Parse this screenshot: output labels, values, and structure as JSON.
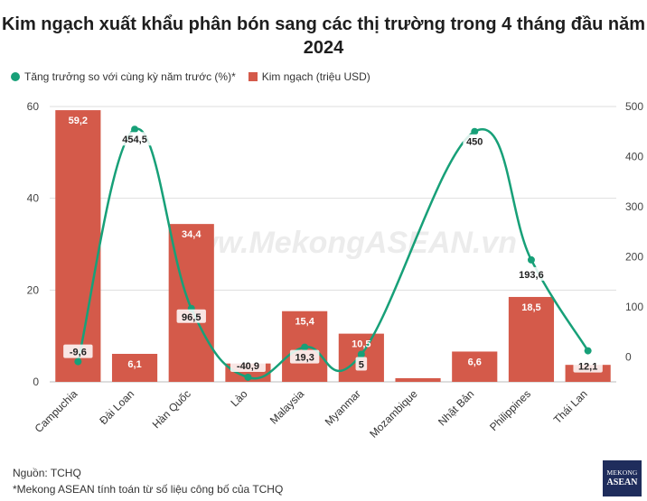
{
  "chart_data": {
    "type": "bar+line",
    "title": "Kim ngạch xuất khẩu phân bón sang các thị trường trong 4 tháng đầu năm 2024",
    "categories": [
      "Campuchia",
      "Đài Loan",
      "Hàn Quốc",
      "Lào",
      "Malaysia",
      "Myanmar",
      "Mozambique",
      "Nhật Bản",
      "Philippines",
      "Thái Lan"
    ],
    "series": [
      {
        "name": "Kim ngạch (triệu USD)",
        "type": "bar",
        "axis": "left",
        "color": "#d45a4a",
        "values": [
          59.2,
          6.1,
          34.4,
          4.0,
          15.4,
          10.5,
          0.8,
          6.6,
          18.5,
          3.7
        ],
        "labels": [
          "59,2",
          "6,1",
          "34,4",
          "",
          "15,4",
          "10,5",
          "",
          "6,6",
          "18,5",
          ""
        ]
      },
      {
        "name": "Tăng trưởng so với cùng kỳ năm trước (%)*",
        "type": "line",
        "axis": "right",
        "color": "#17a078",
        "values": [
          -9.6,
          454.5,
          96.5,
          -40.9,
          19.3,
          5,
          null,
          450,
          193.6,
          12.1
        ],
        "labels": [
          "-9,6",
          "454,5",
          "96,5",
          "-40,9",
          "19,3",
          "5",
          "",
          "450",
          "193,6",
          "12,1"
        ]
      }
    ],
    "left_axis": {
      "min": 0,
      "max": 60,
      "ticks": [
        "0",
        "20",
        "40",
        "60"
      ]
    },
    "right_axis": {
      "min": -50,
      "max": 500,
      "ticks": [
        "0",
        "100",
        "200",
        "300",
        "400",
        "500"
      ]
    },
    "grid": true,
    "legend_position": "top-left"
  },
  "legend": {
    "growth": "Tăng trưởng so với cùng kỳ năm trước (%)*",
    "value": "Kim ngạch (triệu USD)"
  },
  "watermark": "www.MekongASEAN.vn",
  "footer": {
    "source": "Nguồn: TCHQ",
    "note": "*Mekong ASEAN tính toán từ số liệu công bố của TCHQ"
  },
  "logo": {
    "line1": "MEKONG",
    "line2": "ASEAN"
  },
  "colors": {
    "bar": "#d45a4a",
    "line": "#17a078",
    "grid": "#dddddd"
  }
}
